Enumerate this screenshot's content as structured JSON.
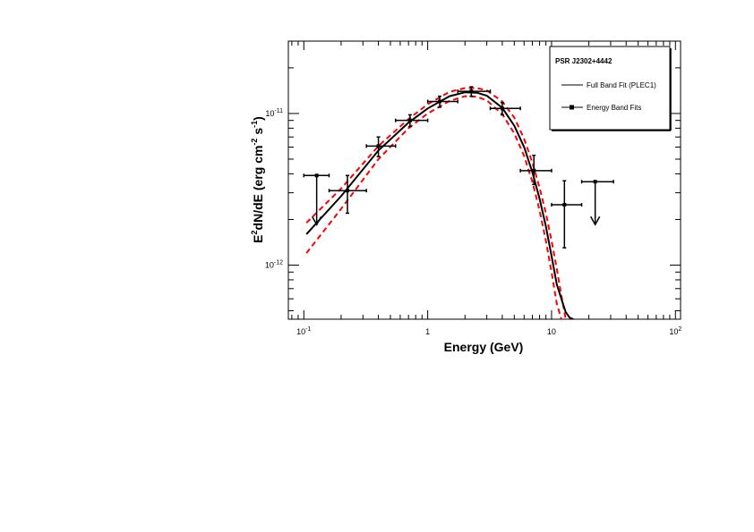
{
  "chart_data": {
    "type": "scatter",
    "title": "",
    "xlabel": {
      "base": "Energy (GeV)"
    },
    "ylabel": {
      "prefix": "E",
      "sup1": "2",
      "mid": "dN/dE (erg cm",
      "sup2": "-2",
      "mid2": " s",
      "sup3": "-1",
      "suffix": ")"
    },
    "xscale": "log",
    "yscale": "log",
    "xlim": [
      0.075,
      110
    ],
    "ylim": [
      4.4e-13,
      3e-11
    ],
    "x_ticks": [
      {
        "base": "10",
        "exp": "-1"
      },
      {
        "base": "1",
        "exp": ""
      },
      {
        "base": "10",
        "exp": ""
      },
      {
        "base": "10",
        "exp": "2"
      }
    ],
    "y_ticks": [
      {
        "base": "10",
        "exp": "-12"
      },
      {
        "base": "10",
        "exp": "-11"
      }
    ],
    "legend": {
      "title": "PSR J2302+4442",
      "entries": [
        "Full Band Fit (PLEC1)",
        "Energy Band Fits"
      ],
      "placement": "top-right"
    },
    "model": {
      "name": "Full Band Fit (PLEC1)",
      "color": "#000000",
      "x": [
        0.105,
        0.2,
        0.4,
        0.7,
        1.0,
        1.5,
        2.0,
        2.5,
        3.0,
        4.0,
        5.0,
        6.0,
        7.0,
        8.0,
        9.0,
        10.0,
        11.0,
        12.0,
        13.0,
        14.0,
        15.0
      ],
      "y": [
        1.6e-12,
        2.85e-12,
        5.7e-12,
        8.7e-12,
        1.08e-11,
        1.3e-11,
        1.38e-11,
        1.37e-11,
        1.31e-11,
        1.09e-11,
        8.3e-12,
        6e-12,
        4.1e-12,
        2.75e-12,
        1.8e-12,
        1.15e-12,
        7.5e-13,
        6e-13,
        4.9e-13,
        4.5e-13,
        4.4e-13
      ]
    },
    "bands": {
      "color": "#ff0000",
      "upper": {
        "x": [
          0.105,
          0.2,
          0.4,
          0.7,
          1.0,
          1.5,
          2.0,
          2.5,
          3.0,
          4.0,
          5.0,
          6.0,
          7.0,
          8.0,
          9.0,
          10.0,
          11.0,
          12.0,
          13.0
        ],
        "y": [
          1.9e-12,
          3.2e-12,
          6.1e-12,
          9.2e-12,
          1.15e-11,
          1.39e-11,
          1.47e-11,
          1.47e-11,
          1.42e-11,
          1.2e-11,
          9.4e-12,
          6.8e-12,
          4.75e-12,
          3.25e-12,
          2.2e-12,
          1.45e-12,
          9.5e-13,
          6.3e-13,
          4.4e-13
        ]
      },
      "lower": {
        "x": [
          0.105,
          0.2,
          0.4,
          0.7,
          1.0,
          1.5,
          2.0,
          2.5,
          3.0,
          4.0,
          5.0,
          6.0,
          7.0,
          8.0,
          9.0,
          10.0,
          11.0,
          12.0
        ],
        "y": [
          1.2e-12,
          2.35e-12,
          5e-12,
          8e-12,
          1e-11,
          1.21e-11,
          1.3e-11,
          1.29e-11,
          1.22e-11,
          9.9e-12,
          7.4e-12,
          5.25e-12,
          3.55e-12,
          2.3e-12,
          1.45e-12,
          9e-13,
          5.6e-13,
          4.4e-13
        ]
      }
    },
    "points": {
      "name": "Energy Band Fits",
      "data": [
        {
          "x": 0.127,
          "y": 3.9e-12,
          "xlo": 0.1,
          "xhi": 0.16,
          "upper_limit": true,
          "ul_to": 1.85e-12
        },
        {
          "x": 0.225,
          "y": 3.1e-12,
          "xlo": 0.16,
          "xhi": 0.32,
          "ylo": 2.2e-12,
          "yhi": 3.9e-12
        },
        {
          "x": 0.4,
          "y": 6.1e-12,
          "xlo": 0.32,
          "xhi": 0.55,
          "ylo": 5.2e-12,
          "yhi": 7e-12
        },
        {
          "x": 0.72,
          "y": 9e-12,
          "xlo": 0.55,
          "xhi": 1.0,
          "ylo": 8.2e-12,
          "yhi": 9.8e-12
        },
        {
          "x": 1.25,
          "y": 1.2e-11,
          "xlo": 1.0,
          "xhi": 1.75,
          "ylo": 1.1e-11,
          "yhi": 1.3e-11
        },
        {
          "x": 2.25,
          "y": 1.4e-11,
          "xlo": 1.75,
          "xhi": 3.2,
          "ylo": 1.3e-11,
          "yhi": 1.5e-11
        },
        {
          "x": 4.0,
          "y": 1.08e-11,
          "xlo": 3.2,
          "xhi": 5.6,
          "ylo": 9.8e-12,
          "yhi": 1.18e-11
        },
        {
          "x": 7.2,
          "y": 4.2e-12,
          "xlo": 5.6,
          "xhi": 10.0,
          "ylo": 3.4e-12,
          "yhi": 5.3e-12
        },
        {
          "x": 12.7,
          "y": 2.5e-12,
          "xlo": 10.0,
          "xhi": 17.5,
          "ylo": 1.3e-12,
          "yhi": 3.6e-12
        },
        {
          "x": 22.5,
          "y": 3.55e-12,
          "xlo": 17.5,
          "xhi": 31.6,
          "upper_limit": true,
          "ul_to": 1.85e-12
        }
      ]
    }
  }
}
